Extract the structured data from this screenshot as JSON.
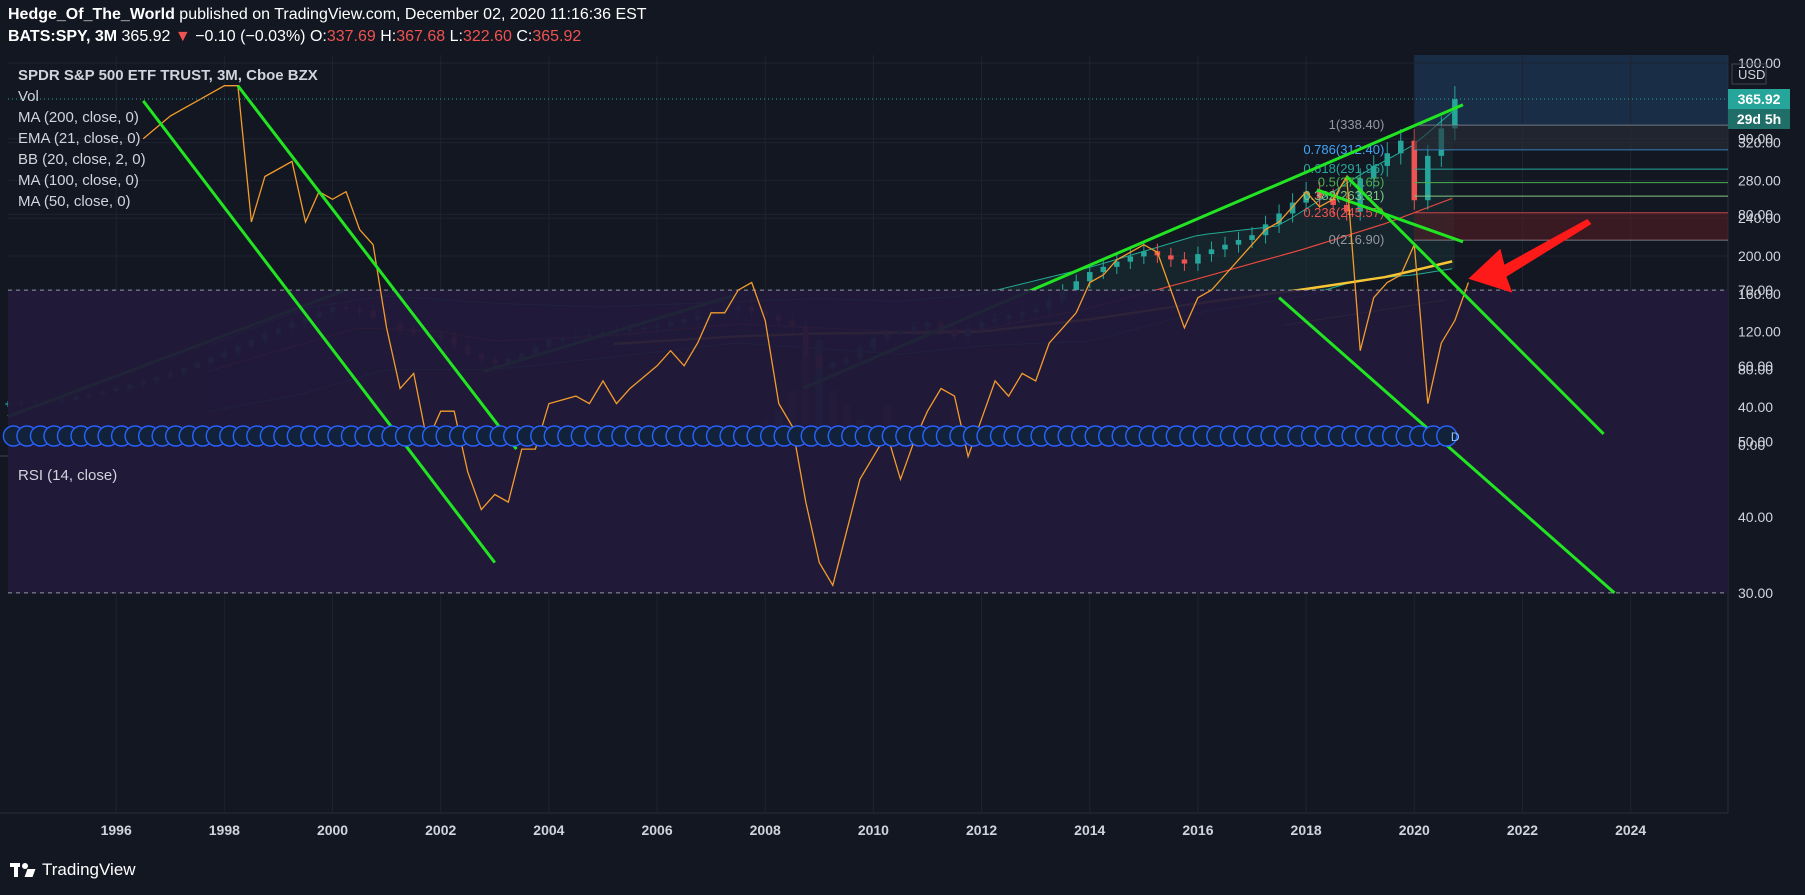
{
  "header": {
    "author": "Hedge_Of_The_World",
    "published": "published on TradingView.com, December 02, 2020 11:16:36 EST",
    "symbol": "BATS:SPY, 3M",
    "last": "365.92",
    "change_arrow": "▼",
    "change": "−0.10 (−0.03%)",
    "o_label": "O:",
    "o_value": "337.69",
    "h_label": "H:",
    "h_value": "367.68",
    "l_label": "L:",
    "l_value": "322.60",
    "c_label": "C:",
    "c_value": "365.92"
  },
  "legend": {
    "title": "SPDR S&P 500 ETF TRUST, 3M, Cboe BZX",
    "items": [
      "Vol",
      "MA (200, close, 0)",
      "EMA (21, close, 0)",
      "BB (20, close, 2, 0)",
      "MA (100, close, 0)",
      "MA (50, close, 0)"
    ],
    "rsi": "RSI (14, close)"
  },
  "price_axis": {
    "currency": "USD",
    "price_badge": "365.92",
    "countdown_badge": "29d 5h"
  },
  "fib": {
    "levels": [
      {
        "label": "1(338.40)",
        "value": 338.4,
        "color": "#9598a1"
      },
      {
        "label": "0.786(312.40)",
        "value": 312.4,
        "color": "#42a5f5"
      },
      {
        "label": "0.618(291.96)",
        "value": 291.96,
        "color": "#26a69a"
      },
      {
        "label": "0.5(277.65)",
        "value": 277.65,
        "color": "#4caf50"
      },
      {
        "label": "0.382(263.31)",
        "value": 263.31,
        "color": "#81c784"
      },
      {
        "label": "0.236(245.57)",
        "value": 245.57,
        "color": "#ef5350"
      },
      {
        "label": "0(216.90)",
        "value": 216.9,
        "color": "#9598a1"
      }
    ]
  },
  "colors": {
    "background": "#131722",
    "up": "#26a69a",
    "down": "#ef5350",
    "trendline": "#22e522",
    "rsi": "#f39c2b",
    "bb": "#22ab94",
    "ma50": "#f7c634",
    "ema21": "#e5483f",
    "rsi_band": "#21193a",
    "arrow": "#ff1a1a"
  },
  "chart_data": [
    {
      "type": "candlestick",
      "title": "SPDR S&P 500 ETF TRUST, 3M, Cboe BZX",
      "ylim": [
        0,
        420
      ],
      "y_ticks": [
        0,
        40,
        80,
        120,
        160,
        200,
        240,
        280,
        320
      ],
      "y_tick_labels": [
        "0.00",
        "40.00",
        "80.00",
        "120.00",
        "160.00",
        "200.00",
        "240.00",
        "280.00",
        "320.00"
      ],
      "x_ticks": [
        1996,
        1998,
        2000,
        2002,
        2004,
        2006,
        2008,
        2010,
        2012,
        2014,
        2016,
        2018,
        2020,
        2022,
        2024
      ],
      "x_tick_labels": [
        "1996",
        "1998",
        "2000",
        "2002",
        "2004",
        "2006",
        "2008",
        "2010",
        "2012",
        "2014",
        "2016",
        "2018",
        "2020",
        "2022",
        "2024"
      ],
      "xlim": [
        1994.0,
        2025.8
      ],
      "grid": true,
      "close_anchors": [
        [
          1994.0,
          44
        ],
        [
          1995.0,
          48
        ],
        [
          1996.0,
          60
        ],
        [
          1997.0,
          76
        ],
        [
          1998.0,
          98
        ],
        [
          1999.0,
          124
        ],
        [
          2000.0,
          146
        ],
        [
          2000.5,
          142
        ],
        [
          2001.0,
          128
        ],
        [
          2001.5,
          118
        ],
        [
          2002.0,
          114
        ],
        [
          2002.5,
          96
        ],
        [
          2003.0,
          86
        ],
        [
          2003.5,
          97
        ],
        [
          2004.0,
          111
        ],
        [
          2005.0,
          119
        ],
        [
          2006.0,
          126
        ],
        [
          2007.0,
          140
        ],
        [
          2007.5,
          146
        ],
        [
          2008.0,
          137
        ],
        [
          2008.5,
          126
        ],
        [
          2008.75,
          94
        ],
        [
          2009.0,
          82
        ],
        [
          2009.5,
          92
        ],
        [
          2010.0,
          113
        ],
        [
          2011.0,
          129
        ],
        [
          2011.5,
          115
        ],
        [
          2012.0,
          130
        ],
        [
          2013.0,
          144
        ],
        [
          2014.0,
          183
        ],
        [
          2015.0,
          205
        ],
        [
          2015.75,
          192
        ],
        [
          2016.0,
          202
        ],
        [
          2017.0,
          222
        ],
        [
          2018.0,
          268
        ],
        [
          2018.75,
          247
        ],
        [
          2019.0,
          282
        ],
        [
          2019.75,
          322
        ],
        [
          2020.0,
          259
        ],
        [
          2020.25,
          306
        ],
        [
          2020.5,
          335
        ],
        [
          2020.75,
          366
        ]
      ],
      "ema21_anchors": [
        [
          1997.7,
          78
        ],
        [
          1999.0,
          100
        ],
        [
          2000.5,
          124
        ],
        [
          2002.0,
          120
        ],
        [
          2003.0,
          110
        ],
        [
          2005.0,
          115
        ],
        [
          2007.5,
          128
        ],
        [
          2009.0,
          124
        ],
        [
          2010.5,
          120
        ],
        [
          2012.0,
          122
        ],
        [
          2014.0,
          145
        ],
        [
          2016.0,
          176
        ],
        [
          2018.0,
          208
        ],
        [
          2019.5,
          235
        ],
        [
          2020.75,
          262
        ]
      ],
      "bb_upper_anchors": [
        [
          1997.7,
          105
        ],
        [
          1999.5,
          145
        ],
        [
          2001.0,
          158
        ],
        [
          2003.0,
          150
        ],
        [
          2005.0,
          146
        ],
        [
          2007.5,
          152
        ],
        [
          2009.0,
          155
        ],
        [
          2010.5,
          152
        ],
        [
          2012.0,
          160
        ],
        [
          2014.0,
          188
        ],
        [
          2016.0,
          222
        ],
        [
          2017.5,
          232
        ],
        [
          2019.0,
          286
        ],
        [
          2020.0,
          318
        ],
        [
          2020.75,
          355
        ]
      ],
      "bb_lower_anchors": [
        [
          1997.7,
          35
        ],
        [
          1999.5,
          55
        ],
        [
          2001.0,
          80
        ],
        [
          2003.0,
          80
        ],
        [
          2005.0,
          92
        ],
        [
          2007.5,
          108
        ],
        [
          2009.5,
          100
        ],
        [
          2010.5,
          96
        ],
        [
          2012.0,
          105
        ],
        [
          2014.0,
          110
        ],
        [
          2016.0,
          140
        ],
        [
          2018.0,
          158
        ],
        [
          2019.0,
          175
        ],
        [
          2020.0,
          180
        ],
        [
          2020.75,
          187
        ]
      ],
      "ma_yellow_thick_anchors": [
        [
          2005.2,
          107
        ],
        [
          2007.5,
          115
        ],
        [
          2009.0,
          118
        ],
        [
          2011.0,
          119
        ],
        [
          2012.0,
          120
        ],
        [
          2014.0,
          133
        ],
        [
          2016.0,
          150
        ],
        [
          2018.0,
          165
        ],
        [
          2019.5,
          178
        ],
        [
          2020.75,
          195
        ]
      ],
      "ma_yellow_thin_anchors": [
        [
          2017.6,
          127
        ],
        [
          2020.75,
          155
        ]
      ],
      "volume_bars": [
        [
          2008.0,
          25
        ],
        [
          2008.25,
          35
        ],
        [
          2008.5,
          55
        ],
        [
          2008.75,
          95
        ],
        [
          2009.0,
          105
        ],
        [
          2009.25,
          55
        ],
        [
          2009.5,
          40
        ],
        [
          2009.75,
          25
        ],
        [
          2010.0,
          18
        ],
        [
          2010.25,
          40
        ],
        [
          2010.5,
          18
        ],
        [
          2011.0,
          20
        ],
        [
          2011.5,
          38
        ],
        [
          2012.0,
          15
        ]
      ],
      "trendlines": [
        {
          "from": [
            1994.0,
            30
          ],
          "to": [
            2000.2,
            163
          ]
        },
        {
          "from": [
            2002.8,
            78
          ],
          "to": [
            2007.4,
            158
          ]
        },
        {
          "from": [
            2008.7,
            60
          ],
          "to": [
            2020.9,
            360
          ]
        },
        {
          "from": [
            2018.2,
            270
          ],
          "to": [
            2020.9,
            215
          ]
        }
      ]
    },
    {
      "type": "line",
      "title": "RSI (14, close)",
      "ylim": [
        25,
        105
      ],
      "y_ticks": [
        30,
        40,
        50,
        60,
        70,
        80,
        90,
        100
      ],
      "y_tick_labels": [
        "30.00",
        "40.00",
        "50.00",
        "60.00",
        "70.00",
        "80.00",
        "90.00",
        "100.00"
      ],
      "overbought": 70,
      "oversold": 30,
      "series": [
        {
          "values": [
            [
              1996.5,
              90
            ],
            [
              1997.0,
              93
            ],
            [
              1997.25,
              94
            ],
            [
              1997.5,
              95
            ],
            [
              1998.0,
              97
            ],
            [
              1998.25,
              97
            ],
            [
              1998.5,
              79
            ],
            [
              1998.75,
              85
            ],
            [
              1999.0,
              86
            ],
            [
              1999.25,
              87
            ],
            [
              1999.5,
              79
            ],
            [
              1999.75,
              83
            ],
            [
              2000.0,
              82
            ],
            [
              2000.25,
              83
            ],
            [
              2000.5,
              78
            ],
            [
              2000.75,
              76
            ],
            [
              2001.0,
              65
            ],
            [
              2001.25,
              57
            ],
            [
              2001.5,
              59
            ],
            [
              2001.75,
              50
            ],
            [
              2002.0,
              54
            ],
            [
              2002.25,
              54
            ],
            [
              2002.5,
              46
            ],
            [
              2002.75,
              41
            ],
            [
              2003.0,
              43
            ],
            [
              2003.25,
              42
            ],
            [
              2003.5,
              49
            ],
            [
              2003.75,
              49
            ],
            [
              2004.0,
              55
            ],
            [
              2004.5,
              56
            ],
            [
              2004.75,
              55
            ],
            [
              2005.0,
              58
            ],
            [
              2005.25,
              55
            ],
            [
              2005.5,
              57
            ],
            [
              2006.0,
              60
            ],
            [
              2006.25,
              62
            ],
            [
              2006.5,
              60
            ],
            [
              2006.75,
              63
            ],
            [
              2007.0,
              67
            ],
            [
              2007.25,
              67
            ],
            [
              2007.5,
              70
            ],
            [
              2007.75,
              71
            ],
            [
              2008.0,
              66
            ],
            [
              2008.25,
              55
            ],
            [
              2008.5,
              52
            ],
            [
              2008.75,
              42
            ],
            [
              2009.0,
              34
            ],
            [
              2009.25,
              31
            ],
            [
              2009.5,
              38
            ],
            [
              2009.75,
              45
            ],
            [
              2010.0,
              48
            ],
            [
              2010.25,
              51
            ],
            [
              2010.5,
              45
            ],
            [
              2010.75,
              50
            ],
            [
              2011.0,
              54
            ],
            [
              2011.25,
              57
            ],
            [
              2011.5,
              56
            ],
            [
              2011.75,
              48
            ],
            [
              2012.0,
              53
            ],
            [
              2012.25,
              58
            ],
            [
              2012.5,
              56
            ],
            [
              2012.75,
              59
            ],
            [
              2013.0,
              58
            ],
            [
              2013.25,
              63
            ],
            [
              2013.5,
              65
            ],
            [
              2013.75,
              67
            ],
            [
              2014.0,
              71
            ],
            [
              2014.25,
              72
            ],
            [
              2014.5,
              74
            ],
            [
              2014.75,
              75
            ],
            [
              2015.0,
              76
            ],
            [
              2015.25,
              75
            ],
            [
              2015.5,
              70
            ],
            [
              2015.75,
              65
            ],
            [
              2016.0,
              69
            ],
            [
              2016.25,
              70
            ],
            [
              2016.5,
              72
            ],
            [
              2016.75,
              74
            ],
            [
              2017.0,
              76
            ],
            [
              2017.25,
              78
            ],
            [
              2017.5,
              79
            ],
            [
              2017.75,
              81
            ],
            [
              2018.0,
              83
            ],
            [
              2018.25,
              81
            ],
            [
              2018.5,
              82
            ],
            [
              2018.75,
              85
            ],
            [
              2019.0,
              62
            ],
            [
              2019.25,
              69
            ],
            [
              2019.5,
              71
            ],
            [
              2019.75,
              72
            ],
            [
              2020.0,
              76
            ],
            [
              2020.25,
              55
            ],
            [
              2020.5,
              63
            ],
            [
              2020.75,
              66
            ],
            [
              2021.0,
              71
            ]
          ]
        }
      ],
      "trendlines": [
        {
          "from": [
            1996.5,
            95
          ],
          "to": [
            2003.0,
            34
          ]
        },
        {
          "from": [
            1998.25,
            97
          ],
          "to": [
            2003.4,
            49
          ]
        },
        {
          "from": [
            2018.75,
            85
          ],
          "to": [
            2023.5,
            51
          ]
        },
        {
          "from": [
            2017.5,
            69
          ],
          "to": [
            2023.7,
            30
          ]
        }
      ]
    }
  ]
}
